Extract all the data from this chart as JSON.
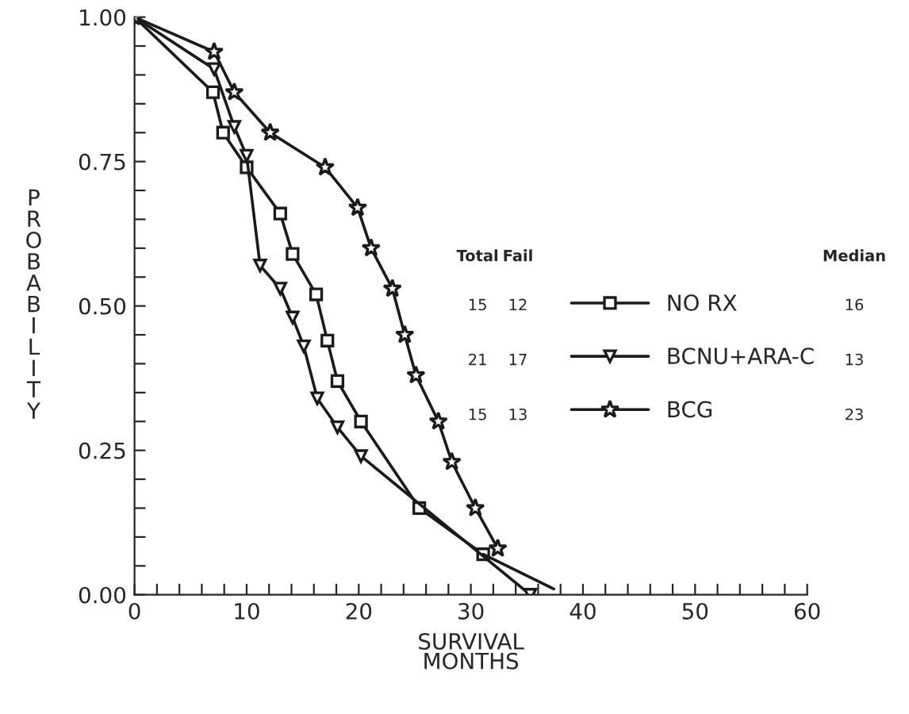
{
  "chart_data": {
    "type": "line",
    "xlabel": "SURVIVAL\nMONTHS",
    "ylabel": "PROBABILITY",
    "xlim": [
      0,
      60
    ],
    "ylim": [
      0,
      1
    ],
    "xticks": [
      0,
      {
        "value": 2,
        "label": null
      },
      {
        "value": 4,
        "label": null
      },
      {
        "value": 6,
        "label": null
      },
      {
        "value": 8,
        "label": null
      },
      10,
      {
        "value": 12,
        "label": null
      },
      {
        "value": 14,
        "label": null
      },
      {
        "value": 16,
        "label": null
      },
      {
        "value": 18,
        "label": null
      },
      20,
      {
        "value": 22,
        "label": null
      },
      {
        "value": 24,
        "label": null
      },
      {
        "value": 26,
        "label": null
      },
      {
        "value": 28,
        "label": null
      },
      30,
      {
        "value": 32,
        "label": null
      },
      {
        "value": 34,
        "label": null
      },
      {
        "value": 36,
        "label": null
      },
      {
        "value": 38,
        "label": null
      },
      40,
      {
        "value": 42,
        "label": null
      },
      {
        "value": 44,
        "label": null
      },
      {
        "value": 46,
        "label": null
      },
      {
        "value": 48,
        "label": null
      },
      50,
      {
        "value": 52,
        "label": null
      },
      {
        "value": 54,
        "label": null
      },
      {
        "value": 56,
        "label": null
      },
      {
        "value": 58,
        "label": null
      },
      60
    ],
    "yticks": [
      {
        "value": 0,
        "label": "0.00"
      },
      {
        "value": 0.05,
        "label": null
      },
      {
        "value": 0.1,
        "label": null
      },
      {
        "value": 0.15,
        "label": null
      },
      {
        "value": 0.2,
        "label": null
      },
      {
        "value": 0.25,
        "label": "0.25"
      },
      {
        "value": 0.3,
        "label": null
      },
      {
        "value": 0.35,
        "label": null
      },
      {
        "value": 0.4,
        "label": null
      },
      {
        "value": 0.45,
        "label": null
      },
      {
        "value": 0.5,
        "label": "0.50"
      },
      {
        "value": 0.55,
        "label": null
      },
      {
        "value": 0.6,
        "label": null
      },
      {
        "value": 0.65,
        "label": null
      },
      {
        "value": 0.7,
        "label": null
      },
      {
        "value": 0.75,
        "label": "0.75"
      },
      {
        "value": 0.8,
        "label": null
      },
      {
        "value": 0.85,
        "label": null
      },
      {
        "value": 0.9,
        "label": null
      },
      {
        "value": 0.95,
        "label": null
      },
      {
        "value": 1,
        "label": "1.00"
      }
    ],
    "grid": false,
    "legend": "right",
    "line_style": "solid",
    "series": [
      {
        "name": "NO RX",
        "color": "#1a1a1a",
        "marker": "square",
        "x": [
          0,
          7.0,
          7.9,
          10.0,
          13.0,
          14.1,
          16.2,
          17.2,
          18.1,
          20.2,
          25.4,
          31.1
        ],
        "values": [
          1.0,
          0.87,
          0.8,
          0.74,
          0.66,
          0.59,
          0.52,
          0.44,
          0.37,
          0.3,
          0.15,
          0.07
        ]
      },
      {
        "color": "#1a1a1a",
        "marker": "none",
        "x": [
          31.1,
          37.4
        ],
        "values": [
          0.07,
          0.01
        ]
      },
      {
        "name": "BCNU+ARA-C",
        "color": "#1a1a1a",
        "marker": "triangle",
        "x": [
          0,
          7.1,
          8.9,
          10.0,
          11.2,
          13.0,
          14.1,
          15.1,
          16.3,
          18.1,
          20.2,
          35.3
        ],
        "values": [
          1.0,
          0.91,
          0.81,
          0.76,
          0.57,
          0.53,
          0.48,
          0.43,
          0.34,
          0.29,
          0.24,
          0.0
        ]
      },
      {
        "name": "BCG",
        "color": "#1a1a1a",
        "marker": "star",
        "x": [
          0,
          7.1,
          8.9,
          12.1,
          17.0,
          19.9,
          21.1,
          23.0,
          24.1,
          25.1,
          27.1,
          28.3,
          30.4,
          32.4
        ],
        "values": [
          1.0,
          0.94,
          0.87,
          0.8,
          0.74,
          0.67,
          0.6,
          0.53,
          0.45,
          0.38,
          0.3,
          0.23,
          0.15,
          0.08
        ]
      }
    ],
    "annotations": [
      "Total",
      "Fail",
      "Median",
      "15",
      "12",
      "16",
      "21",
      "17",
      "13",
      "15",
      "13",
      "23"
    ]
  }
}
